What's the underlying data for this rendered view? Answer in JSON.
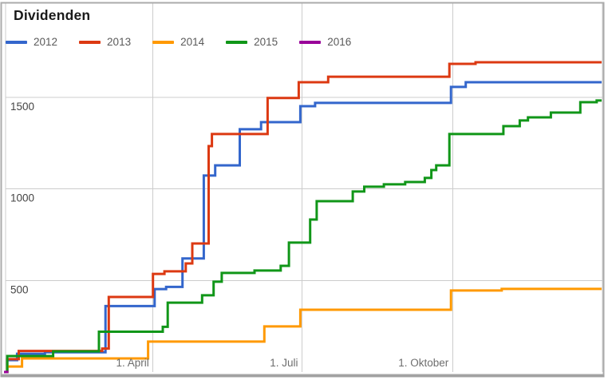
{
  "window": {
    "title": "Dividenden"
  },
  "chart_data": {
    "type": "line",
    "subtype": "stepped-cumulative",
    "title": "Dividenden",
    "xlabel": "",
    "ylabel": "",
    "x_unit": "day_of_year",
    "x_domain_days": [
      0,
      365
    ],
    "ylim": [
      0,
      2015
    ],
    "grid": true,
    "legend_position": "top",
    "x_ticks": [
      {
        "label": "1. April",
        "day": 91
      },
      {
        "label": "1. Juli",
        "day": 182
      },
      {
        "label": "1. Oktober",
        "day": 274
      }
    ],
    "y_ticks": [
      {
        "label": "500",
        "value": 500
      },
      {
        "label": "1000",
        "value": 1000
      },
      {
        "label": "1500",
        "value": 1500
      }
    ],
    "series": [
      {
        "name": "2012",
        "color": "#3366cc",
        "final_value": 1583,
        "points": [
          [
            0,
            0
          ],
          [
            2,
            65
          ],
          [
            8,
            100
          ],
          [
            25,
            108
          ],
          [
            62,
            360
          ],
          [
            92,
            453
          ],
          [
            99,
            465
          ],
          [
            109,
            620
          ],
          [
            122,
            1073
          ],
          [
            129,
            1129
          ],
          [
            144,
            1326
          ],
          [
            157,
            1365
          ],
          [
            181,
            1452
          ],
          [
            190,
            1470
          ],
          [
            273,
            1557
          ],
          [
            282,
            1583
          ],
          [
            365,
            1583
          ]
        ]
      },
      {
        "name": "2013",
        "color": "#dc3912",
        "final_value": 1692,
        "points": [
          [
            0,
            0
          ],
          [
            2,
            70
          ],
          [
            9,
            115
          ],
          [
            60,
            128
          ],
          [
            64,
            410
          ],
          [
            91,
            536
          ],
          [
            98,
            550
          ],
          [
            111,
            593
          ],
          [
            115,
            702
          ],
          [
            125,
            1234
          ],
          [
            127,
            1300
          ],
          [
            161,
            1497
          ],
          [
            180,
            1583
          ],
          [
            198,
            1613
          ],
          [
            272,
            1683
          ],
          [
            288,
            1692
          ],
          [
            365,
            1692
          ]
        ]
      },
      {
        "name": "2014",
        "color": "#ff9900",
        "final_value": 454,
        "points": [
          [
            0,
            0
          ],
          [
            2,
            30
          ],
          [
            11,
            74
          ],
          [
            88,
            166
          ],
          [
            159,
            249
          ],
          [
            181,
            340
          ],
          [
            273,
            445
          ],
          [
            304,
            454
          ],
          [
            365,
            454
          ]
        ]
      },
      {
        "name": "2015",
        "color": "#109618",
        "final_value": 1483,
        "points": [
          [
            0,
            0
          ],
          [
            2,
            87
          ],
          [
            30,
            113
          ],
          [
            58,
            220
          ],
          [
            97,
            247
          ],
          [
            100,
            379
          ],
          [
            121,
            419
          ],
          [
            128,
            493
          ],
          [
            133,
            541
          ],
          [
            153,
            554
          ],
          [
            169,
            580
          ],
          [
            174,
            707
          ],
          [
            187,
            833
          ],
          [
            191,
            933
          ],
          [
            213,
            986
          ],
          [
            220,
            1012
          ],
          [
            232,
            1025
          ],
          [
            245,
            1038
          ],
          [
            257,
            1060
          ],
          [
            261,
            1103
          ],
          [
            264,
            1129
          ],
          [
            272,
            1300
          ],
          [
            305,
            1343
          ],
          [
            315,
            1374
          ],
          [
            320,
            1391
          ],
          [
            334,
            1417
          ],
          [
            352,
            1474
          ],
          [
            362,
            1483
          ],
          [
            365,
            1483
          ]
        ]
      },
      {
        "name": "2016",
        "color": "#990099",
        "final_value": 8,
        "points": [
          [
            0,
            0
          ],
          [
            2,
            8
          ]
        ]
      }
    ]
  },
  "style": {
    "grid_color": "#cccccc",
    "frame_color": "#ababab",
    "frame_bottom_color": "#a0a0a0",
    "y_tick_color": "#444444",
    "x_tick_color": "#6d6d6d",
    "line_width": 3
  }
}
